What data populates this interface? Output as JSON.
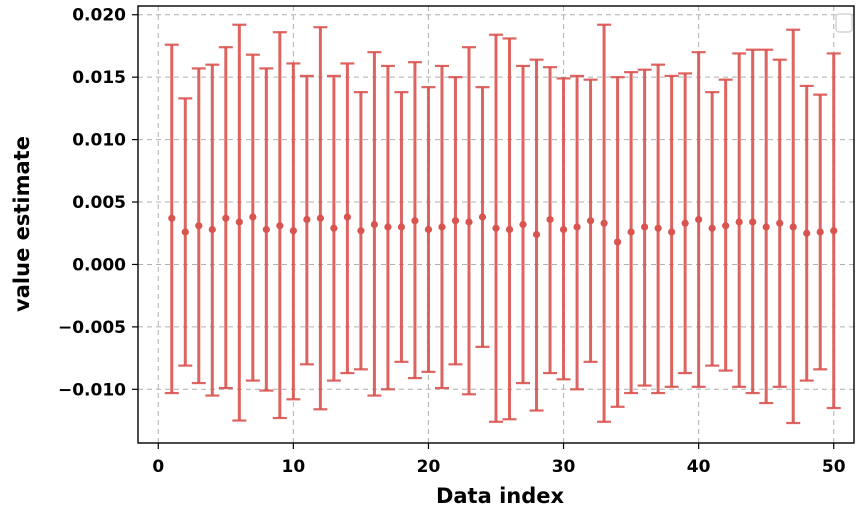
{
  "chart_data": {
    "type": "scatter",
    "title": "",
    "xlabel": "Data index",
    "ylabel": "value estimate",
    "xlim": [
      -1.5,
      51.5
    ],
    "ylim": [
      -0.0143,
      0.0207
    ],
    "x_ticks": [
      0,
      10,
      20,
      30,
      40,
      50
    ],
    "x_tick_labels": [
      "0",
      "10",
      "20",
      "30",
      "40",
      "50"
    ],
    "y_ticks": [
      -0.01,
      -0.005,
      0.0,
      0.005,
      0.01,
      0.015,
      0.02
    ],
    "y_tick_labels": [
      "−0.010",
      "−0.005",
      "0.000",
      "0.005",
      "0.010",
      "0.015",
      "0.020"
    ],
    "grid": true,
    "legend": "top-right (empty)",
    "colors": {
      "errorbar": "#d9534f"
    },
    "series": [
      {
        "x": [
          1,
          2,
          3,
          4,
          5,
          6,
          7,
          8,
          9,
          10,
          11,
          12,
          13,
          14,
          15,
          16,
          17,
          18,
          19,
          20,
          21,
          22,
          23,
          24,
          25,
          26,
          27,
          28,
          29,
          30,
          31,
          32,
          33,
          34,
          35,
          36,
          37,
          38,
          39,
          40,
          41,
          42,
          43,
          44,
          45,
          46,
          47,
          48,
          49,
          50
        ],
        "y": [
          0.0037,
          0.0026,
          0.0031,
          0.0028,
          0.0037,
          0.0034,
          0.0038,
          0.0028,
          0.0031,
          0.0027,
          0.0036,
          0.0037,
          0.0029,
          0.0038,
          0.0027,
          0.0032,
          0.003,
          0.003,
          0.0035,
          0.0028,
          0.003,
          0.0035,
          0.0034,
          0.0038,
          0.0029,
          0.0028,
          0.0032,
          0.0024,
          0.0036,
          0.0028,
          0.003,
          0.0035,
          0.0033,
          0.0018,
          0.0026,
          0.003,
          0.0029,
          0.0026,
          0.0033,
          0.0036,
          0.0029,
          0.0031,
          0.0034,
          0.0034,
          0.003,
          0.0033,
          0.003,
          0.0025,
          0.0026,
          0.0027
        ],
        "upper": [
          0.0176,
          0.0133,
          0.0157,
          0.016,
          0.0174,
          0.0192,
          0.0168,
          0.0157,
          0.0186,
          0.0161,
          0.0151,
          0.019,
          0.0151,
          0.0161,
          0.0138,
          0.017,
          0.0159,
          0.0138,
          0.0162,
          0.0142,
          0.0159,
          0.015,
          0.0174,
          0.0142,
          0.0184,
          0.0181,
          0.0159,
          0.0164,
          0.0158,
          0.0149,
          0.0151,
          0.0148,
          0.0192,
          0.015,
          0.0154,
          0.0156,
          0.016,
          0.0151,
          0.0153,
          0.017,
          0.0138,
          0.0148,
          0.0169,
          0.0172,
          0.0172,
          0.0164,
          0.0188,
          0.0143,
          0.0136,
          0.0169
        ],
        "lower": [
          -0.0103,
          -0.0081,
          -0.0095,
          -0.0105,
          -0.0099,
          -0.0125,
          -0.0093,
          -0.0101,
          -0.0123,
          -0.0108,
          -0.008,
          -0.0116,
          -0.0093,
          -0.0087,
          -0.0084,
          -0.0105,
          -0.01,
          -0.0078,
          -0.0091,
          -0.0086,
          -0.0099,
          -0.008,
          -0.0104,
          -0.0066,
          -0.0126,
          -0.0124,
          -0.0095,
          -0.0117,
          -0.0087,
          -0.0092,
          -0.01,
          -0.0078,
          -0.0126,
          -0.0114,
          -0.0103,
          -0.0097,
          -0.0103,
          -0.0098,
          -0.0087,
          -0.0098,
          -0.0081,
          -0.0085,
          -0.0098,
          -0.0103,
          -0.0111,
          -0.0098,
          -0.0127,
          -0.0093,
          -0.0084,
          -0.0115
        ]
      }
    ]
  }
}
